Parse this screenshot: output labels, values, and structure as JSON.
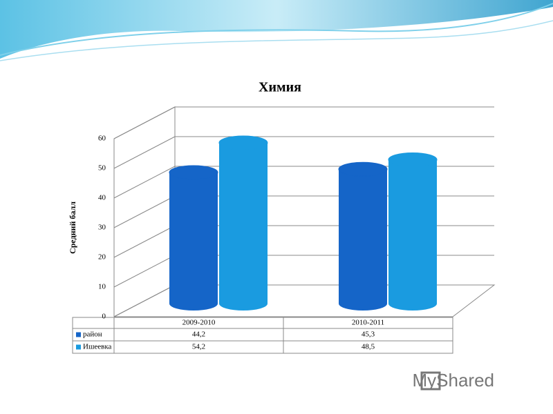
{
  "chart_data": {
    "type": "bar3d",
    "title": "Химия",
    "y_label": "Средний балл",
    "categories": [
      "2009-2010",
      "2010-2011"
    ],
    "series": [
      {
        "name": "район",
        "color": "#1565c8",
        "values": [
          44.2,
          45.3
        ],
        "value_labels": [
          "44,2",
          "45,3"
        ]
      },
      {
        "name": "Ишеевка",
        "color": "#1a9be0",
        "values": [
          54.2,
          48.5
        ],
        "value_labels": [
          "54,2",
          "48,5"
        ]
      }
    ],
    "ylim": [
      0,
      60
    ],
    "yticks": [
      0,
      10,
      20,
      30,
      40,
      50,
      60
    ],
    "grid": true
  },
  "watermark": "MyShared"
}
